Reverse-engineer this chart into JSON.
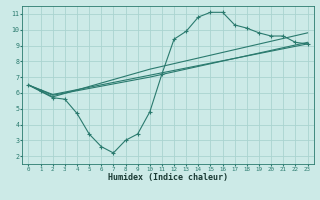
{
  "xlabel": "Humidex (Indice chaleur)",
  "xlim": [
    -0.5,
    23.5
  ],
  "ylim": [
    1.5,
    11.5
  ],
  "xticks": [
    0,
    1,
    2,
    3,
    4,
    5,
    6,
    7,
    8,
    9,
    10,
    11,
    12,
    13,
    14,
    15,
    16,
    17,
    18,
    19,
    20,
    21,
    22,
    23
  ],
  "yticks": [
    2,
    3,
    4,
    5,
    6,
    7,
    8,
    9,
    10,
    11
  ],
  "background_color": "#cceae7",
  "grid_color": "#aad4d0",
  "line_color": "#2a7a6e",
  "main_series": {
    "x": [
      0,
      1,
      2,
      3,
      4,
      5,
      6,
      7,
      8,
      9,
      10,
      11,
      12,
      13,
      14,
      15,
      16,
      17,
      18,
      19,
      20,
      21,
      22,
      23
    ],
    "y": [
      6.5,
      6.1,
      5.7,
      5.6,
      4.7,
      3.4,
      2.6,
      2.2,
      3.0,
      3.4,
      4.8,
      7.2,
      9.4,
      9.9,
      10.8,
      11.1,
      11.1,
      10.3,
      10.1,
      9.8,
      9.6,
      9.6,
      9.2,
      9.1
    ]
  },
  "trend_lines": [
    {
      "x": [
        0,
        2,
        23
      ],
      "y": [
        6.5,
        5.9,
        9.1
      ]
    },
    {
      "x": [
        0,
        2,
        10,
        23
      ],
      "y": [
        6.5,
        5.85,
        7.0,
        9.2
      ]
    },
    {
      "x": [
        0,
        2,
        10,
        23
      ],
      "y": [
        6.5,
        5.75,
        7.5,
        9.8
      ]
    }
  ]
}
